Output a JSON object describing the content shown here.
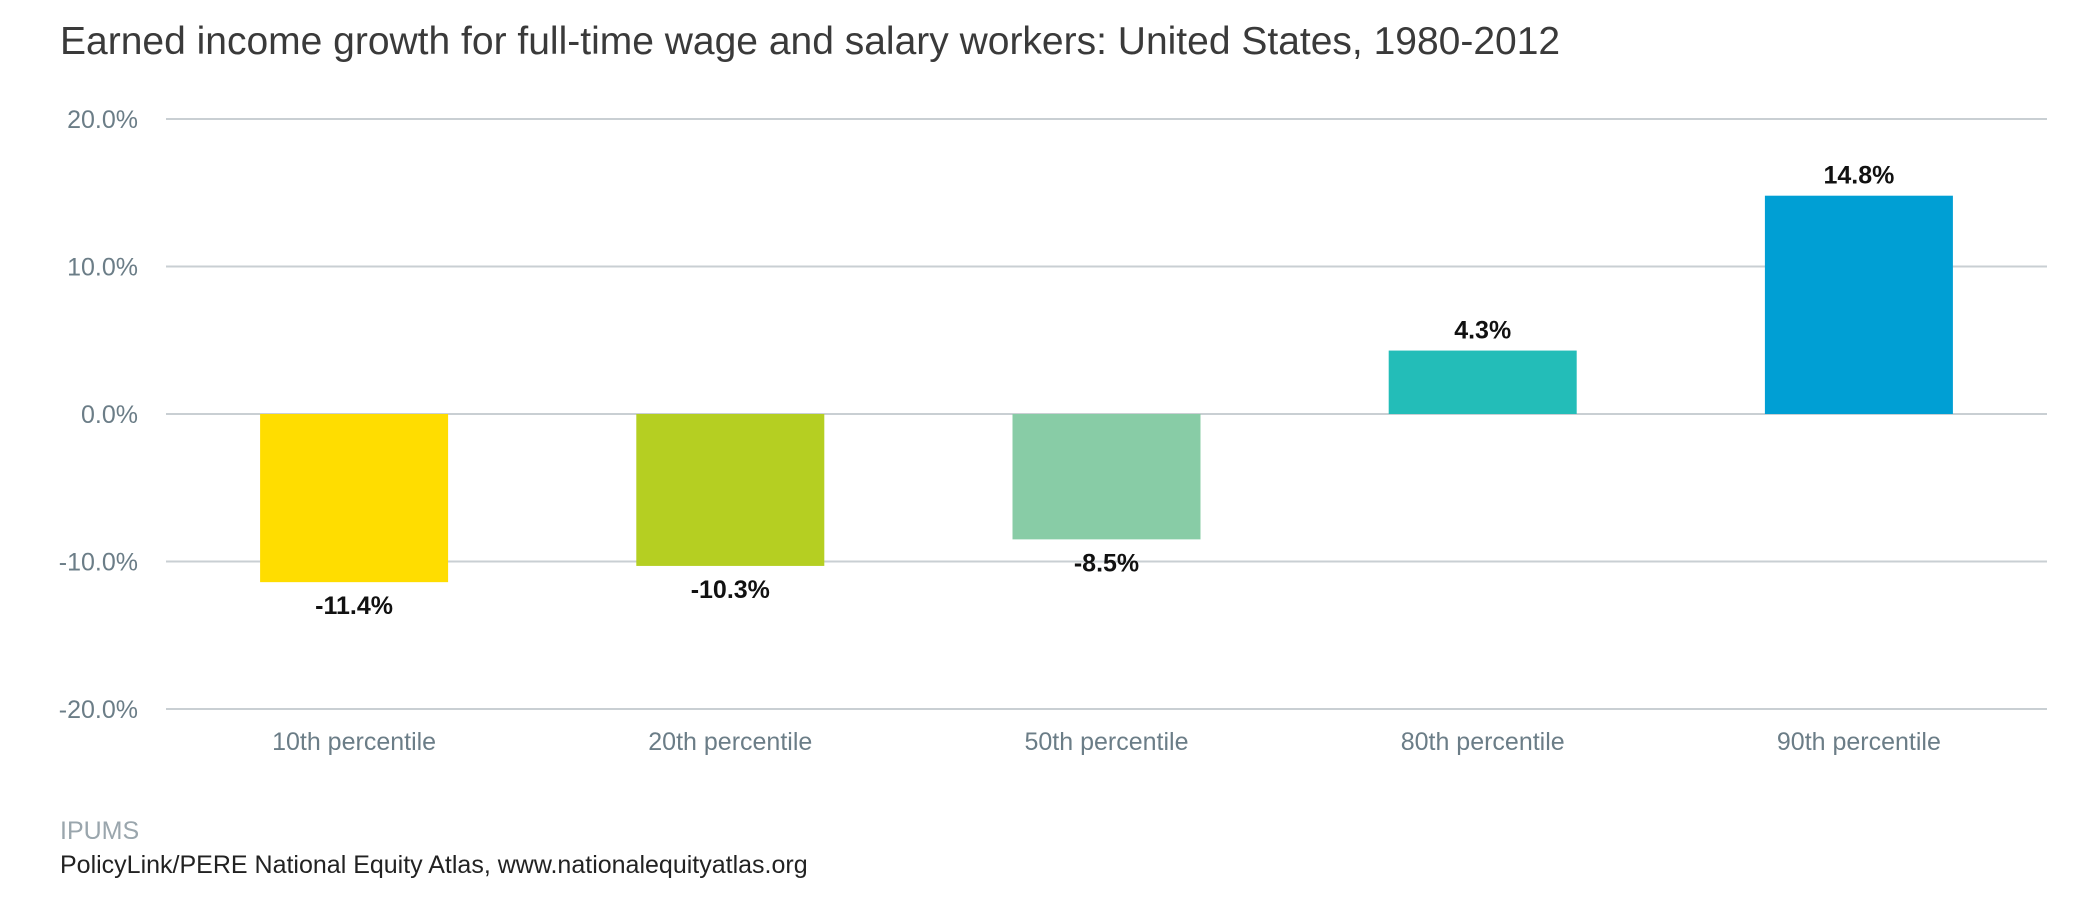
{
  "chart_data": {
    "type": "bar",
    "title": "Earned income growth for full-time wage and salary workers: United States, 1980-2012",
    "categories": [
      "10th percentile",
      "20th percentile",
      "50th percentile",
      "80th percentile",
      "90th percentile"
    ],
    "values": [
      -11.4,
      -10.3,
      -8.5,
      4.3,
      14.8
    ],
    "value_labels": [
      "-11.4%",
      "-10.3%",
      "-8.5%",
      "4.3%",
      "14.8%"
    ],
    "colors": [
      "#FFDD00",
      "#B5CF22",
      "#88CCA6",
      "#23BDB8",
      "#009FD4"
    ],
    "ylim": [
      -20,
      20
    ],
    "yticks": [
      20,
      10,
      0,
      -10,
      -20
    ],
    "ytick_labels": [
      "20.0%",
      "10.0%",
      "0.0%",
      "-10.0%",
      "-20.0%"
    ],
    "xlabel": "",
    "ylabel": "",
    "grid": true,
    "legend": false
  },
  "footer": {
    "source": "IPUMS",
    "credit": "PolicyLink/PERE National Equity Atlas, www.nationalequityatlas.org"
  }
}
